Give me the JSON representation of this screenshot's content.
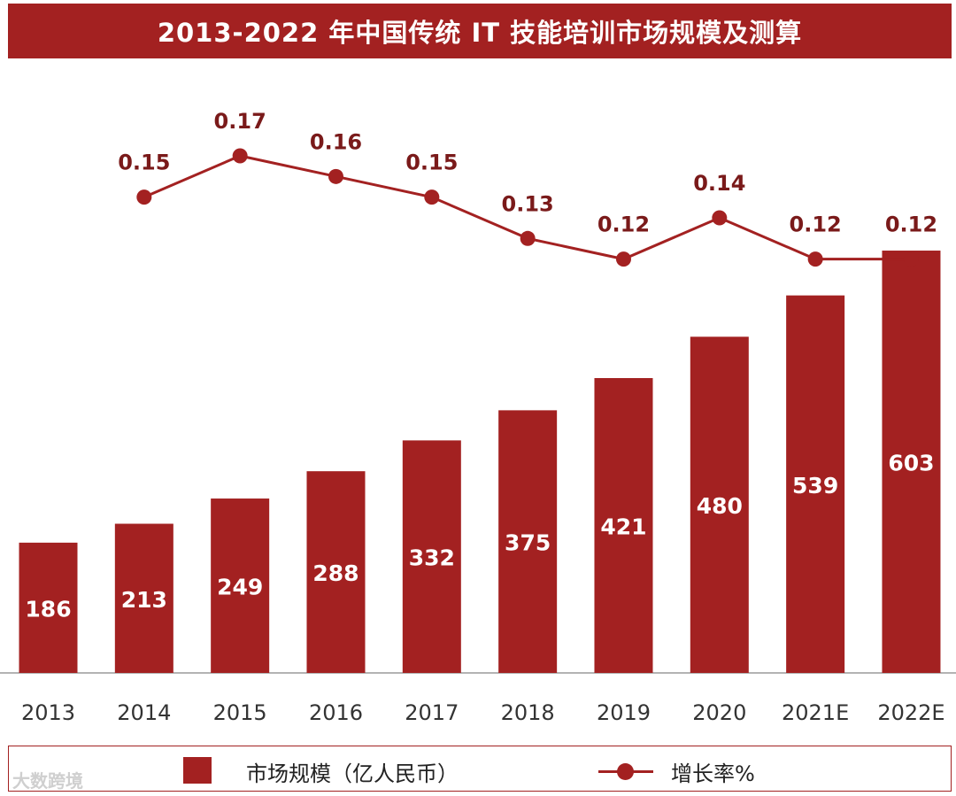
{
  "chart_data": {
    "type": "bar",
    "title": "2013-2022 年中国传统 IT 技能培训市场规模及测算",
    "categories": [
      "2013",
      "2014",
      "2015",
      "2016",
      "2017",
      "2018",
      "2019",
      "2020",
      "2021E",
      "2022E"
    ],
    "series": [
      {
        "name": "市场规模（亿人民币）",
        "type": "bar",
        "values": [
          186,
          213,
          249,
          288,
          332,
          375,
          421,
          480,
          539,
          603
        ]
      },
      {
        "name": "增长率%",
        "type": "line",
        "values": [
          null,
          0.15,
          0.17,
          0.16,
          0.15,
          0.13,
          0.12,
          0.14,
          0.12,
          0.12
        ],
        "labels": [
          "",
          "0.15",
          "0.17",
          "0.16",
          "0.15",
          "0.13",
          "0.12",
          "0.14",
          "0.12",
          "0.12"
        ]
      }
    ],
    "colors": {
      "bar": "#A32121",
      "line": "#A32121",
      "title_bg": "#A32121",
      "bar_label": "#ffffff"
    },
    "legend_position": "bottom",
    "grid": false
  },
  "watermark": "大数跨境"
}
